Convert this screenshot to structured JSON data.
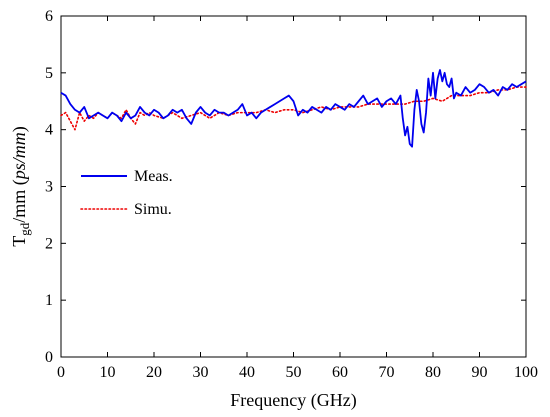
{
  "chart_data": {
    "type": "line",
    "title": "",
    "xlabel": "Frequency (GHz)",
    "ylabel": {
      "base": "T",
      "subscript": "gd",
      "unit_prefix": "/mm (",
      "unit": "ps/mm",
      "unit_suffix": ")"
    },
    "xlim": [
      0,
      100
    ],
    "ylim": [
      0,
      6
    ],
    "xticks": [
      0,
      10,
      20,
      30,
      40,
      50,
      60,
      70,
      80,
      90,
      100
    ],
    "yticks": [
      0,
      1,
      2,
      3,
      4,
      5,
      6
    ],
    "grid": false,
    "legend_placement": "center-left",
    "series": [
      {
        "name": "Meas.",
        "color": "#0000ee",
        "style": "solid",
        "x": [
          0,
          1,
          2,
          3,
          4,
          5,
          6,
          7,
          8,
          9,
          10,
          11,
          12,
          13,
          14,
          15,
          16,
          17,
          18,
          19,
          20,
          21,
          22,
          23,
          24,
          25,
          26,
          27,
          28,
          29,
          30,
          31,
          32,
          33,
          34,
          35,
          36,
          37,
          38,
          39,
          40,
          41,
          42,
          43,
          44,
          45,
          46,
          47,
          48,
          49,
          50,
          51,
          52,
          53,
          54,
          55,
          56,
          57,
          58,
          59,
          60,
          61,
          62,
          63,
          64,
          65,
          66,
          67,
          68,
          69,
          70,
          71,
          72,
          73,
          73.5,
          74,
          74.5,
          75,
          75.5,
          76,
          76.5,
          77,
          77.5,
          78,
          78.5,
          79,
          79.5,
          80,
          80.5,
          81,
          81.5,
          82,
          82.5,
          83,
          83.5,
          84,
          84.5,
          85,
          86,
          87,
          88,
          89,
          90,
          91,
          92,
          93,
          94,
          95,
          96,
          97,
          98,
          99,
          100
        ],
        "y": [
          4.65,
          4.6,
          4.45,
          4.35,
          4.3,
          4.4,
          4.2,
          4.25,
          4.3,
          4.25,
          4.2,
          4.3,
          4.25,
          4.15,
          4.3,
          4.2,
          4.25,
          4.4,
          4.3,
          4.25,
          4.35,
          4.3,
          4.2,
          4.25,
          4.35,
          4.3,
          4.35,
          4.2,
          4.1,
          4.3,
          4.4,
          4.3,
          4.25,
          4.35,
          4.3,
          4.3,
          4.25,
          4.3,
          4.35,
          4.45,
          4.25,
          4.3,
          4.2,
          4.3,
          4.35,
          4.4,
          4.45,
          4.5,
          4.55,
          4.6,
          4.5,
          4.25,
          4.35,
          4.3,
          4.4,
          4.35,
          4.3,
          4.4,
          4.35,
          4.45,
          4.4,
          4.35,
          4.45,
          4.4,
          4.5,
          4.6,
          4.45,
          4.5,
          4.55,
          4.4,
          4.5,
          4.55,
          4.45,
          4.6,
          4.2,
          3.9,
          4.05,
          3.75,
          3.7,
          4.35,
          4.7,
          4.5,
          4.1,
          3.95,
          4.3,
          4.9,
          4.6,
          5.0,
          4.55,
          4.9,
          5.05,
          4.85,
          5.0,
          4.8,
          4.75,
          4.9,
          4.55,
          4.65,
          4.6,
          4.75,
          4.65,
          4.7,
          4.8,
          4.75,
          4.65,
          4.7,
          4.6,
          4.75,
          4.7,
          4.8,
          4.75,
          4.8,
          4.85
        ]
      },
      {
        "name": "Simu.",
        "color": "#ee0000",
        "style": "dotted",
        "x": [
          0,
          1,
          2,
          3,
          4,
          5,
          6,
          7,
          8,
          9,
          10,
          11,
          12,
          13,
          14,
          15,
          16,
          17,
          18,
          19,
          20,
          22,
          24,
          26,
          28,
          30,
          32,
          34,
          36,
          38,
          40,
          42,
          44,
          46,
          48,
          50,
          52,
          54,
          56,
          58,
          60,
          62,
          64,
          66,
          68,
          70,
          72,
          74,
          76,
          78,
          80,
          82,
          84,
          86,
          88,
          90,
          92,
          94,
          96,
          98,
          100
        ],
        "y": [
          4.25,
          4.3,
          4.15,
          4.0,
          4.3,
          4.15,
          4.25,
          4.2,
          4.3,
          4.25,
          4.2,
          4.3,
          4.25,
          4.2,
          4.35,
          4.2,
          4.1,
          4.3,
          4.25,
          4.3,
          4.25,
          4.2,
          4.3,
          4.2,
          4.25,
          4.3,
          4.2,
          4.3,
          4.25,
          4.3,
          4.3,
          4.3,
          4.35,
          4.3,
          4.35,
          4.35,
          4.3,
          4.35,
          4.4,
          4.35,
          4.4,
          4.4,
          4.4,
          4.45,
          4.45,
          4.45,
          4.45,
          4.45,
          4.5,
          4.5,
          4.55,
          4.5,
          4.6,
          4.6,
          4.6,
          4.65,
          4.65,
          4.7,
          4.7,
          4.75,
          4.75
        ]
      }
    ]
  }
}
